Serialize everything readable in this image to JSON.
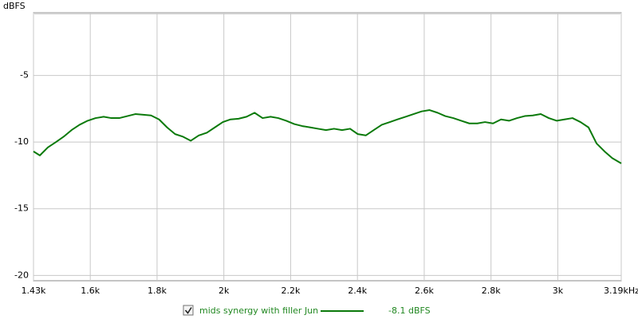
{
  "chart_data": {
    "type": "line",
    "y_label": "dBFS",
    "x": [
      1430,
      1449,
      1473,
      1497,
      1520,
      1544,
      1568,
      1592,
      1616,
      1640,
      1663,
      1687,
      1711,
      1735,
      1759,
      1782,
      1806,
      1830,
      1854,
      1878,
      1901,
      1925,
      1949,
      1973,
      1997,
      2020,
      2044,
      2068,
      2092,
      2116,
      2140,
      2163,
      2187,
      2211,
      2235,
      2259,
      2282,
      2306,
      2330,
      2354,
      2378,
      2401,
      2425,
      2449,
      2473,
      2497,
      2520,
      2544,
      2568,
      2592,
      2616,
      2640,
      2663,
      2687,
      2711,
      2735,
      2759,
      2782,
      2806,
      2830,
      2854,
      2878,
      2901,
      2925,
      2949,
      2973,
      2997,
      3020,
      3044,
      3068,
      3092,
      3116,
      3140,
      3163,
      3190
    ],
    "series": [
      {
        "name": "mids synergy with filler Jun",
        "color": "#0b7a0b",
        "values": [
          -10.7,
          -11.0,
          -10.4,
          -10.0,
          -9.6,
          -9.1,
          -8.7,
          -8.4,
          -8.2,
          -8.1,
          -8.2,
          -8.2,
          -8.05,
          -7.9,
          -7.95,
          -8.0,
          -8.3,
          -8.9,
          -9.4,
          -9.6,
          -9.9,
          -9.5,
          -9.3,
          -8.9,
          -8.5,
          -8.3,
          -8.25,
          -8.1,
          -7.8,
          -8.2,
          -8.1,
          -8.2,
          -8.4,
          -8.65,
          -8.8,
          -8.9,
          -9.0,
          -9.1,
          -9.0,
          -9.1,
          -9.0,
          -9.4,
          -9.5,
          -9.1,
          -8.7,
          -8.5,
          -8.3,
          -8.1,
          -7.9,
          -7.7,
          -7.6,
          -7.8,
          -8.05,
          -8.2,
          -8.4,
          -8.6,
          -8.6,
          -8.5,
          -8.6,
          -8.3,
          -8.4,
          -8.2,
          -8.05,
          -8.0,
          -7.9,
          -8.2,
          -8.4,
          -8.3,
          -8.2,
          -8.5,
          -8.9,
          -10.1,
          -10.7,
          -11.2,
          -11.6
        ],
        "level_label": "-8.1 dBFS"
      }
    ],
    "xlim": [
      1430,
      3190
    ],
    "xticks": [
      {
        "value": 1430,
        "label": "1.43k"
      },
      {
        "value": 1600,
        "label": "1.6k"
      },
      {
        "value": 1800,
        "label": "1.8k"
      },
      {
        "value": 2000,
        "label": "2k"
      },
      {
        "value": 2200,
        "label": "2.2k"
      },
      {
        "value": 2400,
        "label": "2.4k"
      },
      {
        "value": 2600,
        "label": "2.6k"
      },
      {
        "value": 2800,
        "label": "2.8k"
      },
      {
        "value": 3000,
        "label": "3k"
      },
      {
        "value": 3190,
        "label": "3.19kHz"
      }
    ],
    "ylim": [
      -20.4,
      -0.3
    ],
    "yticks": [
      -5,
      -10,
      -15,
      -20
    ],
    "grid": true
  }
}
